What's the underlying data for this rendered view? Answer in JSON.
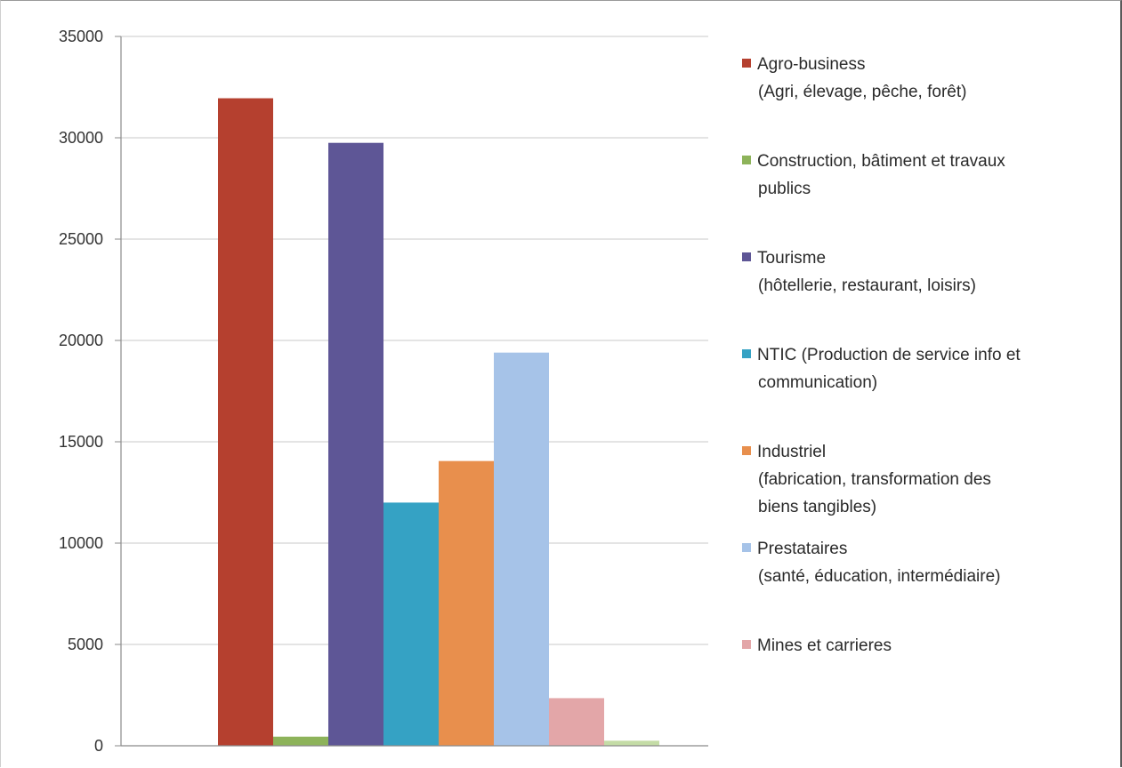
{
  "chart_data": {
    "type": "bar",
    "title": "",
    "xlabel": "",
    "ylabel": "",
    "ylim": [
      0,
      35000
    ],
    "yticks": [
      "0",
      "5000",
      "10000",
      "15000",
      "20000",
      "25000",
      "30000",
      "35000"
    ],
    "grid": true,
    "legend_position": "right",
    "series": [
      {
        "name": "Agro-business\n(Agri, élevage, pêche, forêt)",
        "value": 31950,
        "color": "#b5402f"
      },
      {
        "name": "Construction, bâtiment et travaux\npublics",
        "value": 450,
        "color": "#8db35a"
      },
      {
        "name": "Tourisme\n(hôtellerie, restaurant, loisirs)",
        "value": 29750,
        "color": "#5e5696"
      },
      {
        "name": "NTIC (Production de service info et\ncommunication)",
        "value": 12000,
        "color": "#35a2c4"
      },
      {
        "name": "Industriel\n(fabrication, transformation des\nbiens tangibles)",
        "value": 14050,
        "color": "#e88f4d"
      },
      {
        "name": "Prestataires\n(santé, éducation, intermédiaire)",
        "value": 19400,
        "color": "#a6c3e8"
      },
      {
        "name": "Mines et carrieres",
        "value": 2350,
        "color": "#e3a6a8"
      },
      {
        "name": "",
        "value": 250,
        "color": "#c4dca6"
      }
    ]
  }
}
